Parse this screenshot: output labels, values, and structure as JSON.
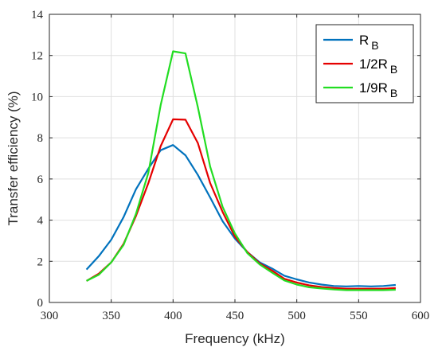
{
  "chart_data": {
    "type": "line",
    "xlabel": "Frequency (kHz)",
    "ylabel": "Transfer efficiency (%)",
    "xlim": [
      300,
      600
    ],
    "ylim": [
      0,
      14
    ],
    "xticks": [
      300,
      350,
      400,
      450,
      500,
      550,
      600
    ],
    "yticks": [
      0,
      2,
      4,
      6,
      8,
      10,
      12,
      14
    ],
    "grid": true,
    "legend_position": "top-right",
    "x": [
      330,
      340,
      350,
      360,
      370,
      380,
      390,
      400,
      410,
      420,
      430,
      440,
      450,
      460,
      470,
      480,
      490,
      500,
      510,
      520,
      530,
      540,
      550,
      560,
      570,
      580
    ],
    "series": [
      {
        "name": "R",
        "subscript": "B",
        "color": "#0072BD",
        "values": [
          1.6,
          2.25,
          3.05,
          4.15,
          5.5,
          6.5,
          7.4,
          7.65,
          7.15,
          6.2,
          5.1,
          3.95,
          3.1,
          2.45,
          1.95,
          1.65,
          1.3,
          1.12,
          0.97,
          0.87,
          0.8,
          0.78,
          0.8,
          0.78,
          0.8,
          0.85
        ]
      },
      {
        "name": "1/2R",
        "subscript": "B",
        "color": "#E50000",
        "values": [
          1.05,
          1.4,
          1.95,
          2.85,
          4.2,
          5.8,
          7.6,
          8.9,
          8.88,
          7.75,
          5.8,
          4.4,
          3.2,
          2.45,
          1.9,
          1.55,
          1.15,
          0.97,
          0.83,
          0.75,
          0.7,
          0.67,
          0.67,
          0.67,
          0.67,
          0.7
        ]
      },
      {
        "name": "1/9R",
        "subscript": "B",
        "color": "#22DD22",
        "values": [
          1.05,
          1.35,
          1.95,
          2.8,
          4.3,
          6.3,
          9.6,
          12.2,
          12.1,
          9.5,
          6.6,
          4.65,
          3.35,
          2.4,
          1.85,
          1.45,
          1.07,
          0.87,
          0.74,
          0.68,
          0.63,
          0.6,
          0.6,
          0.6,
          0.6,
          0.62
        ]
      }
    ]
  }
}
